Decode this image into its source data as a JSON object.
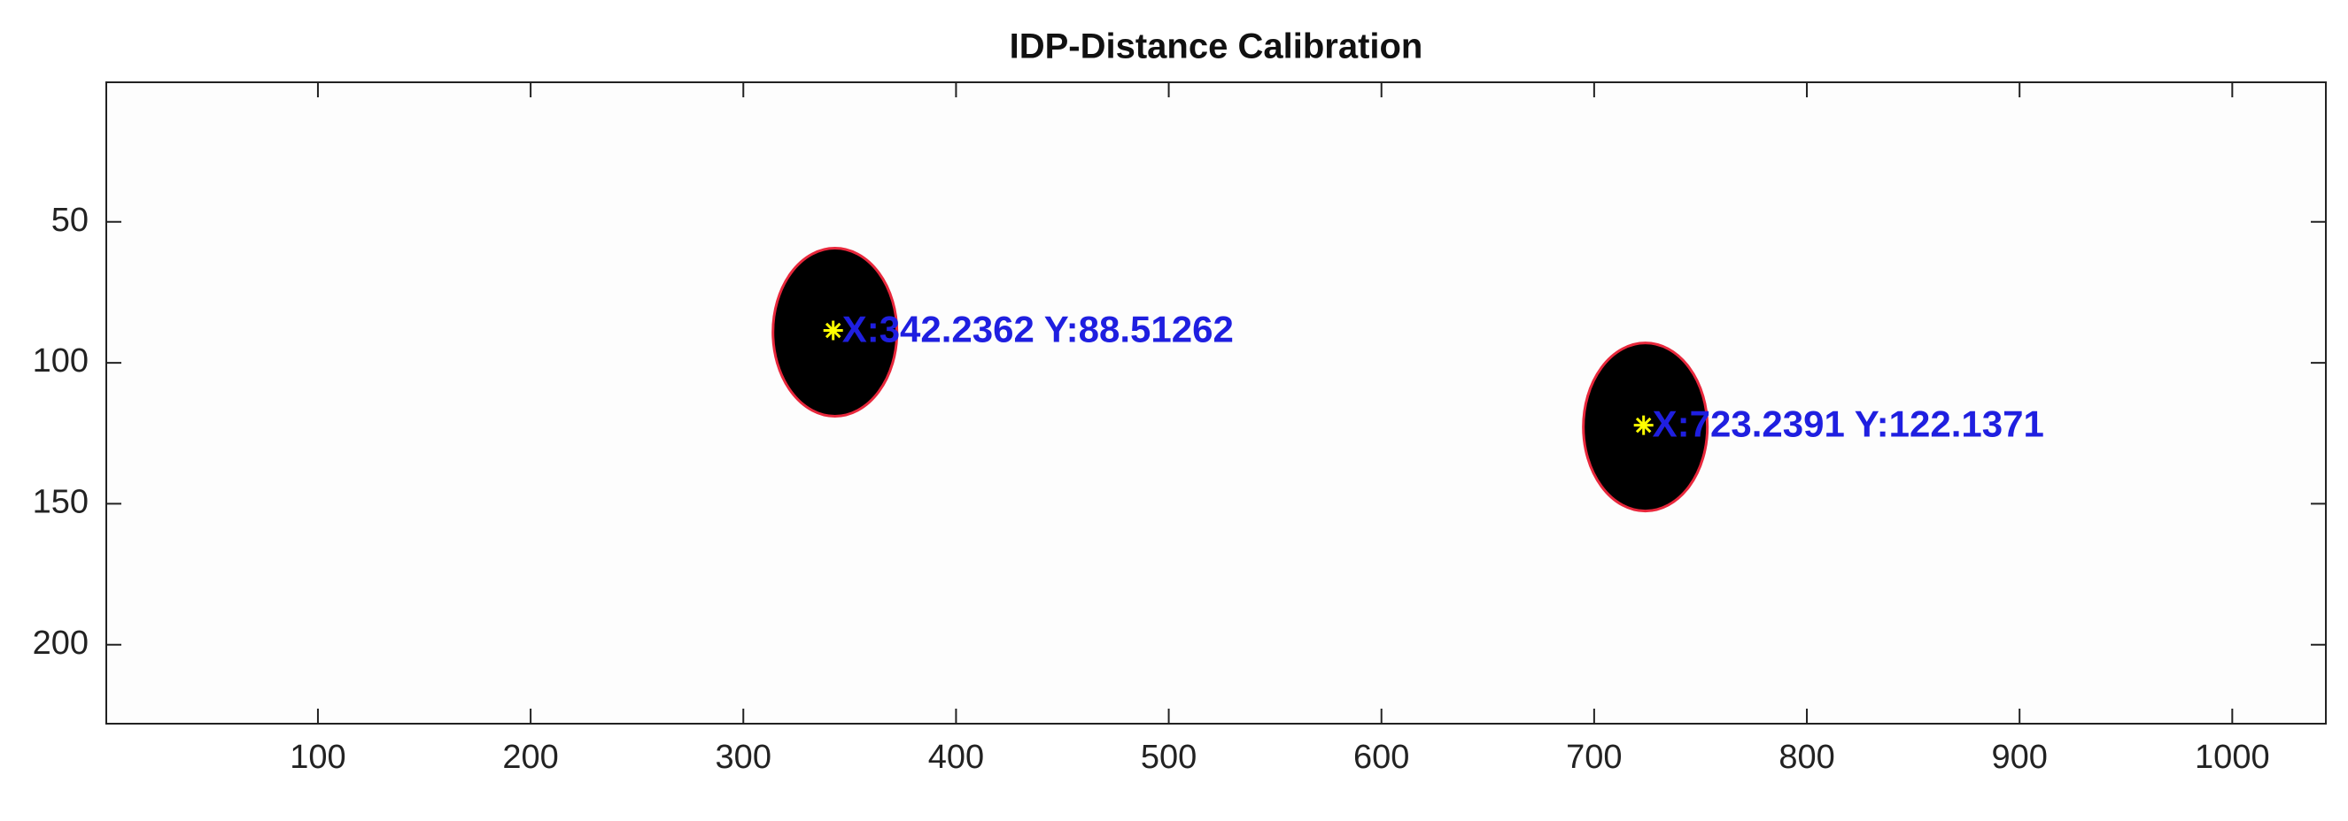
{
  "chart_data": {
    "type": "scatter",
    "title": "IDP-Distance Calibration",
    "x": [
      342.2362,
      723.2391
    ],
    "values": [
      88.51262,
      122.1371
    ],
    "value_labels": [
      "X:342.2362 Y:88.51262",
      "X:723.2391 Y:122.1371"
    ],
    "color": "#ffff00",
    "label_color": "#1f1fe0",
    "blob_color": "#000000",
    "blob_outline": "#e8283c",
    "xlim": [
      0.5,
      1044
    ],
    "ylim": [
      0.5,
      228
    ],
    "xticks": [
      100,
      200,
      300,
      400,
      500,
      600,
      700,
      800,
      900,
      1000
    ],
    "yticks": [
      50,
      100,
      150,
      200
    ],
    "y_reverse": true,
    "grid": false
  }
}
